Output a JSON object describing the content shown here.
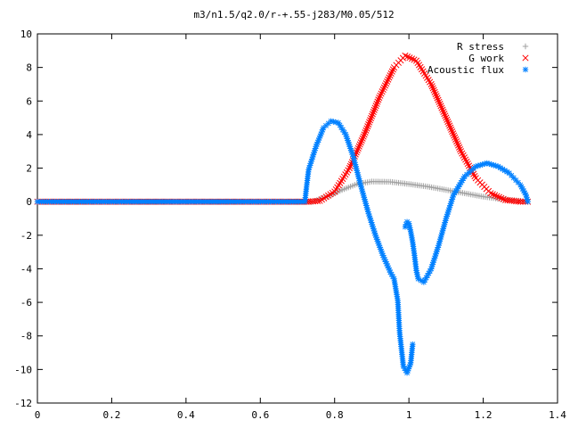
{
  "chart_data": {
    "type": "scatter",
    "title": "m3/n1.5/q2.0/r-+.55-j283/M0.05/512",
    "xlabel": "",
    "ylabel": "",
    "xlim": [
      0,
      1.4
    ],
    "ylim": [
      -12,
      10
    ],
    "xticks": [
      "0",
      "0.2",
      "0.4",
      "0.6",
      "0.8",
      "1",
      "1.2",
      "1.4"
    ],
    "yticks": [
      "10",
      "8",
      "6",
      "4",
      "2",
      "0",
      "-2",
      "-4",
      "-6",
      "-8",
      "-10",
      "-12"
    ],
    "xtick_values": [
      0,
      0.2,
      0.4,
      0.6,
      0.8,
      1.0,
      1.2,
      1.4
    ],
    "ytick_values": [
      10,
      8,
      6,
      4,
      2,
      0,
      -2,
      -4,
      -6,
      -8,
      -10,
      -12
    ],
    "grid": false,
    "legend_position": "top-right",
    "series": [
      {
        "name": "R stress",
        "marker": "+",
        "color": "#a0a0a0",
        "points": [
          [
            0.0,
            0
          ],
          [
            0.1,
            0
          ],
          [
            0.2,
            0
          ],
          [
            0.3,
            0
          ],
          [
            0.4,
            0
          ],
          [
            0.5,
            0
          ],
          [
            0.6,
            0
          ],
          [
            0.7,
            0
          ],
          [
            0.74,
            0
          ],
          [
            0.78,
            0.3
          ],
          [
            0.82,
            0.7
          ],
          [
            0.86,
            1.05
          ],
          [
            0.9,
            1.2
          ],
          [
            0.95,
            1.18
          ],
          [
            1.0,
            1.05
          ],
          [
            1.05,
            0.9
          ],
          [
            1.1,
            0.7
          ],
          [
            1.15,
            0.5
          ],
          [
            1.2,
            0.3
          ],
          [
            1.25,
            0.15
          ],
          [
            1.3,
            0.05
          ],
          [
            1.32,
            0
          ]
        ]
      },
      {
        "name": "G work",
        "marker": "x",
        "color": "#ff0000",
        "points": [
          [
            0.0,
            0
          ],
          [
            0.2,
            0
          ],
          [
            0.4,
            0
          ],
          [
            0.6,
            0
          ],
          [
            0.73,
            0
          ],
          [
            0.76,
            0.05
          ],
          [
            0.8,
            0.6
          ],
          [
            0.84,
            2.0
          ],
          [
            0.88,
            4.0
          ],
          [
            0.92,
            6.2
          ],
          [
            0.96,
            8.0
          ],
          [
            0.99,
            8.7
          ],
          [
            1.02,
            8.4
          ],
          [
            1.06,
            7.0
          ],
          [
            1.1,
            5.0
          ],
          [
            1.14,
            3.0
          ],
          [
            1.18,
            1.4
          ],
          [
            1.22,
            0.5
          ],
          [
            1.26,
            0.1
          ],
          [
            1.3,
            0
          ],
          [
            1.32,
            0
          ]
        ]
      },
      {
        "name": "Acoustic flux",
        "marker": "*",
        "color": "#0080ff",
        "points": [
          [
            0.0,
            0
          ],
          [
            0.2,
            0
          ],
          [
            0.4,
            0
          ],
          [
            0.6,
            0
          ],
          [
            0.72,
            0
          ],
          [
            0.725,
            1.0
          ],
          [
            0.73,
            1.9
          ],
          [
            0.75,
            3.3
          ],
          [
            0.77,
            4.4
          ],
          [
            0.79,
            4.8
          ],
          [
            0.81,
            4.7
          ],
          [
            0.83,
            4.0
          ],
          [
            0.85,
            2.7
          ],
          [
            0.87,
            1.0
          ],
          [
            0.89,
            -0.6
          ],
          [
            0.91,
            -2.0
          ],
          [
            0.93,
            -3.2
          ],
          [
            0.95,
            -4.2
          ],
          [
            0.96,
            -4.6
          ],
          [
            0.97,
            -5.9
          ],
          [
            0.975,
            -7.8
          ],
          [
            0.985,
            -9.8
          ],
          [
            0.995,
            -10.2
          ],
          [
            1.005,
            -9.6
          ],
          [
            1.01,
            -8.5
          ],
          [
            0.99,
            -1.5
          ],
          [
            0.995,
            -1.2
          ],
          [
            1.0,
            -1.3
          ],
          [
            1.005,
            -1.8
          ],
          [
            1.01,
            -2.4
          ],
          [
            1.015,
            -3.2
          ],
          [
            1.02,
            -4.1
          ],
          [
            1.025,
            -4.6
          ],
          [
            1.04,
            -4.8
          ],
          [
            1.06,
            -4.0
          ],
          [
            1.08,
            -2.6
          ],
          [
            1.1,
            -1.0
          ],
          [
            1.12,
            0.4
          ],
          [
            1.15,
            1.5
          ],
          [
            1.18,
            2.1
          ],
          [
            1.21,
            2.3
          ],
          [
            1.24,
            2.1
          ],
          [
            1.27,
            1.7
          ],
          [
            1.3,
            1.0
          ],
          [
            1.315,
            0.4
          ],
          [
            1.32,
            0
          ]
        ]
      }
    ]
  }
}
